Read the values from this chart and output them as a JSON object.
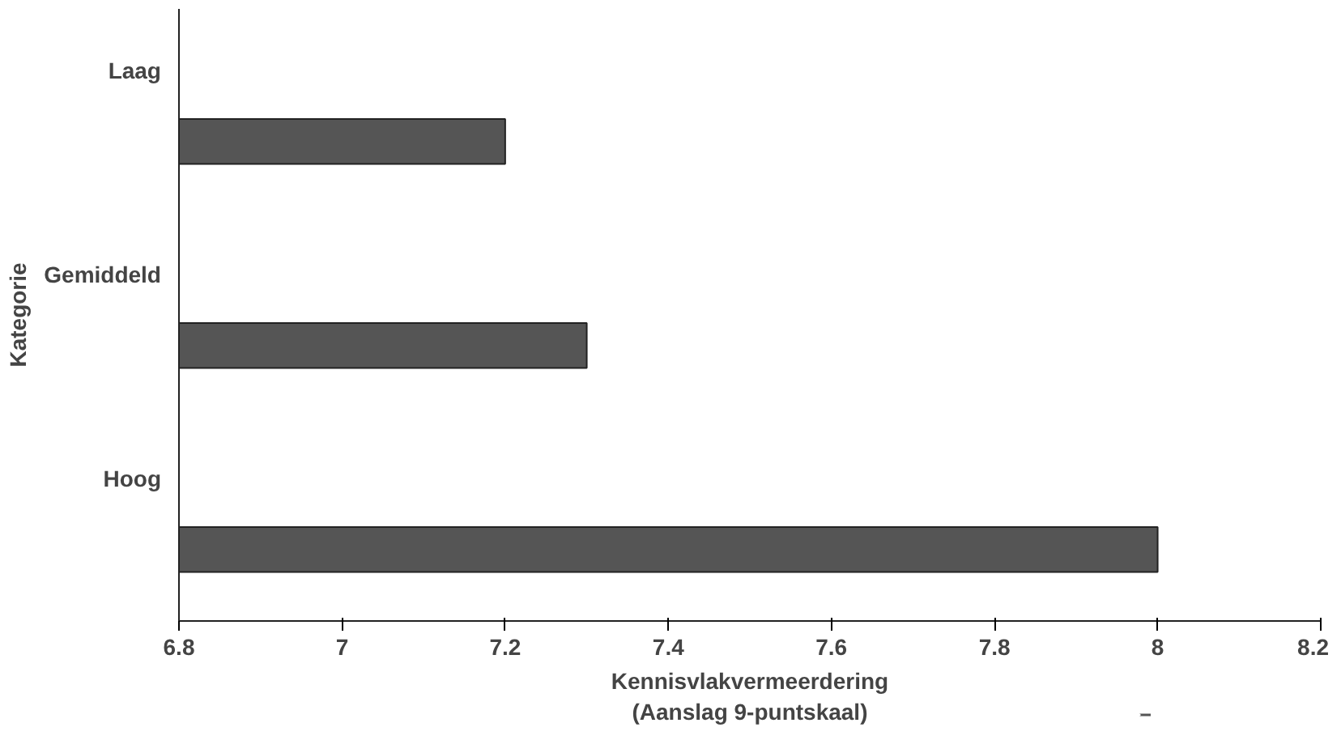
{
  "chart_data": {
    "type": "bar",
    "orientation": "horizontal",
    "categories": [
      "Laag",
      "Gemiddeld",
      "Hoog"
    ],
    "values": [
      7.2,
      7.3,
      8
    ],
    "color": "#555555",
    "xlim": [
      6.8,
      8.2
    ],
    "xticks": [
      6.8,
      7,
      7.2,
      7.4,
      7.6,
      7.8,
      8,
      8.2
    ],
    "xlabel": "Kennisvlakvermeerdering\n(Aanslag 9-puntskaal)",
    "ylabel": "Kategorie",
    "grid": false
  }
}
